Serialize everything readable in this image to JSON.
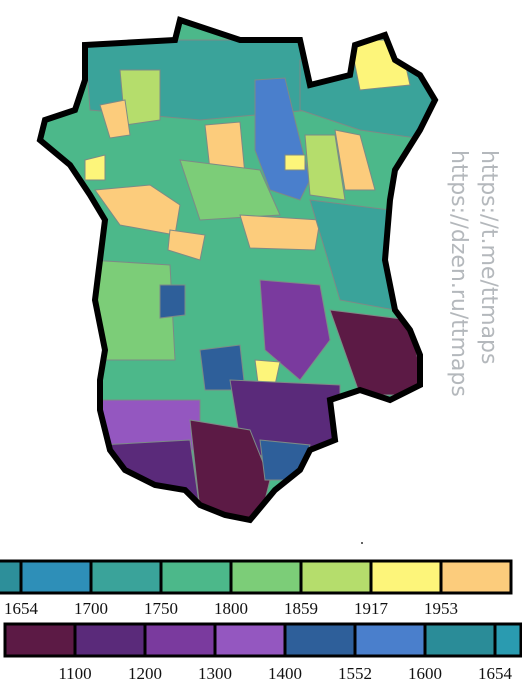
{
  "map": {
    "legend_top": {
      "colors": [
        "#2d8f9a",
        "#2e8fb8",
        "#3aa39a",
        "#4cb88a",
        "#7ccd78",
        "#b5dd6c",
        "#fdf57a",
        "#fccc7c"
      ],
      "labels": [
        1654,
        1700,
        1750,
        1800,
        1859,
        1917,
        1953
      ]
    },
    "legend_bottom": {
      "colors": [
        "#5c1a45",
        "#5a2a7a",
        "#7a3a9e",
        "#9457c0",
        "#2e5f9a",
        "#4a7fcc",
        "#2a8c98",
        "#2a9bb0"
      ],
      "labels": [
        1100,
        1200,
        1300,
        1400,
        1552,
        1600,
        1654
      ]
    },
    "watermarks": [
      "https://t.me/ttmaps",
      "https://dzen.ru/ttmaps"
    ]
  }
}
